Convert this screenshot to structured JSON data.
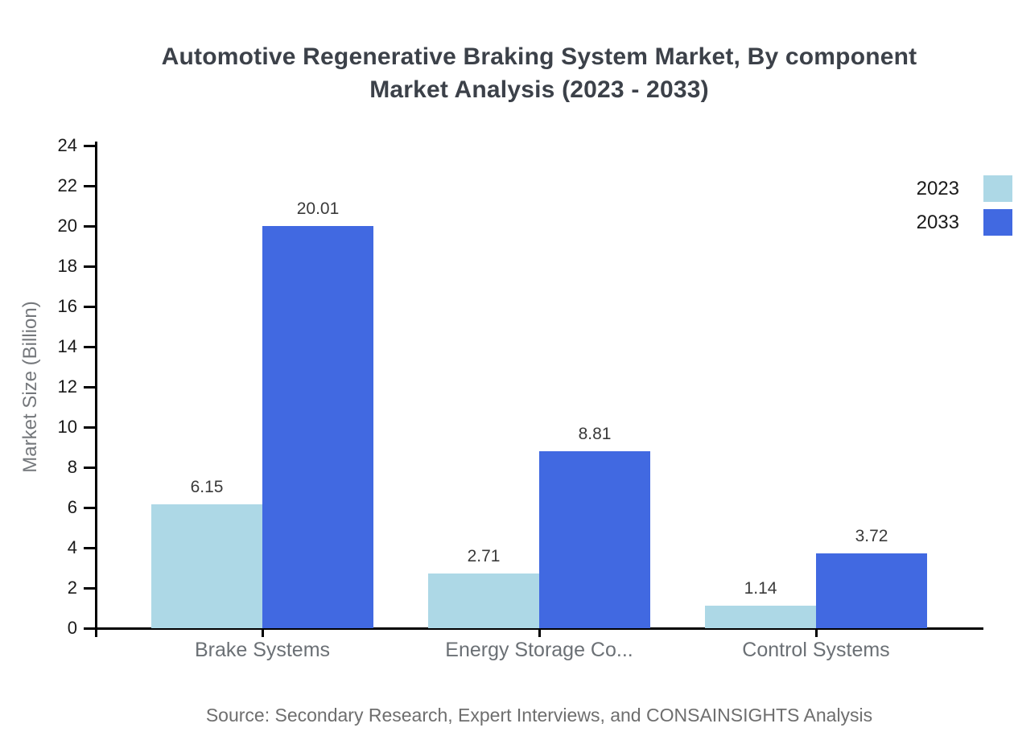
{
  "page": {
    "background": "#ffffff"
  },
  "colors": {
    "axis": "#000000",
    "title": "#3c4149",
    "tick_label": "#1a1a1a",
    "value_label": "#3a3a3a",
    "category_label": "#6b7075",
    "axis_title": "#75787c",
    "source": "#6e6e6e",
    "series_2023": "#ADD8E6",
    "series_2033": "#4169E1"
  },
  "chart_data": {
    "type": "bar",
    "title": "Automotive Regenerative Braking System Market, By component Market Analysis (2023 - 2033)",
    "title_lines": [
      "Automotive Regenerative Braking System Market, By component",
      "Market Analysis (2023 - 2033)"
    ],
    "categories": [
      "Brake Systems",
      "Energy Storage Co...",
      "Control Systems"
    ],
    "series": [
      {
        "name": "2023",
        "color": "#ADD8E6",
        "values": [
          6.15,
          2.71,
          1.14
        ]
      },
      {
        "name": "2033",
        "color": "#4169E1",
        "values": [
          20.01,
          8.81,
          3.72
        ]
      }
    ],
    "xlabel": "",
    "ylabel": "Market Size (Billion)",
    "ylim": [
      0,
      24
    ],
    "yticks": [
      0,
      2,
      4,
      6,
      8,
      10,
      12,
      14,
      16,
      18,
      20,
      22,
      24
    ],
    "grid": false,
    "legend_position": "top-right",
    "value_label_decimals": 2,
    "source_note": "Source: Secondary Research, Expert Interviews, and CONSAINSIGHTS Analysis"
  }
}
